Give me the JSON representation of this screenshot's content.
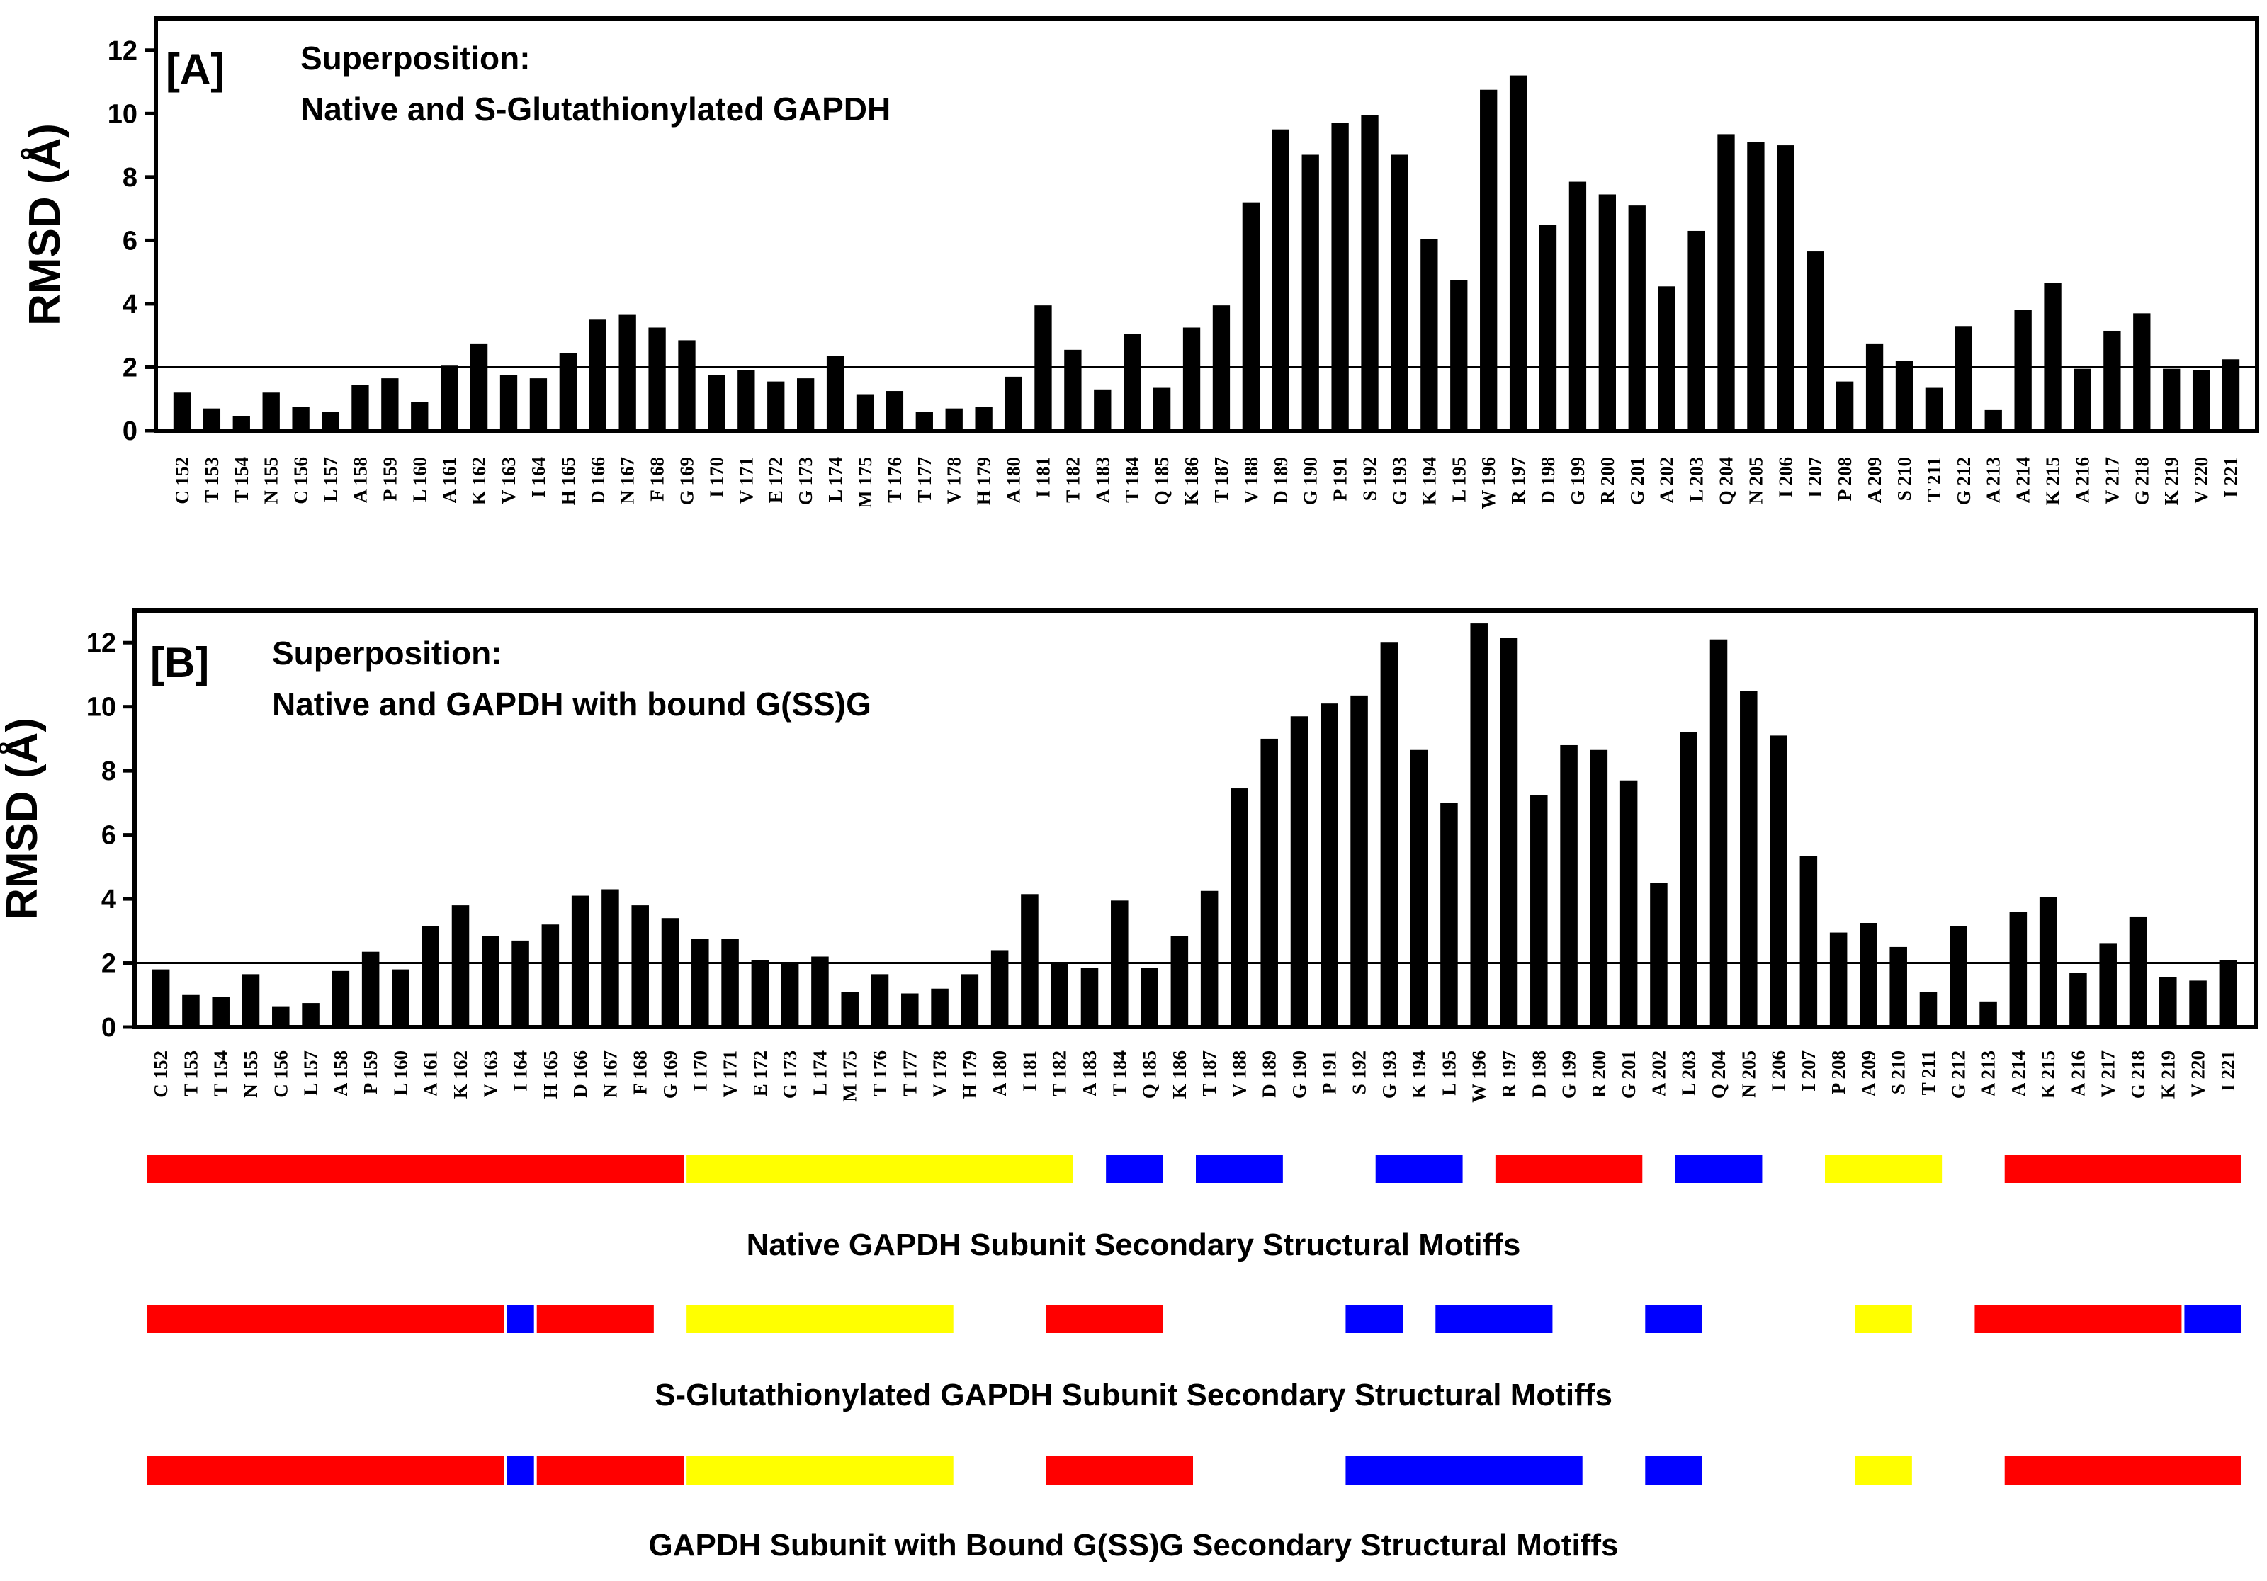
{
  "chart_data": [
    {
      "type": "bar",
      "panel": "[A]",
      "title_lines": [
        "Superposition:",
        "Native and S-Glutathionylated GAPDH"
      ],
      "ylabel": "RMSD (Å)",
      "ylim": [
        0,
        13
      ],
      "yticks": [
        0,
        2,
        4,
        6,
        8,
        10,
        12
      ],
      "reference_line": 2,
      "categories": [
        "C 152",
        "T 153",
        "T 154",
        "N 155",
        "C 156",
        "L 157",
        "A 158",
        "P 159",
        "L 160",
        "A 161",
        "K 162",
        "V 163",
        "I 164",
        "H 165",
        "D 166",
        "N 167",
        "F 168",
        "G 169",
        "I 170",
        "V 171",
        "E 172",
        "G 173",
        "L 174",
        "M 175",
        "T 176",
        "T 177",
        "V 178",
        "H 179",
        "A 180",
        "I 181",
        "T 182",
        "A 183",
        "T 184",
        "Q 185",
        "K 186",
        "T 187",
        "V 188",
        "D 189",
        "G 190",
        "P 191",
        "S 192",
        "G 193",
        "K 194",
        "L 195",
        "W 196",
        "R 197",
        "D 198",
        "G 199",
        "R 200",
        "G 201",
        "A 202",
        "L 203",
        "Q 204",
        "N 205",
        "I 206",
        "I 207",
        "P 208",
        "A 209",
        "S 210",
        "T 211",
        "G 212",
        "A 213",
        "A 214",
        "K 215",
        "A 216",
        "V 217",
        "G 218",
        "K 219",
        "V 220",
        "I 221"
      ],
      "values": [
        1.2,
        0.7,
        0.45,
        1.2,
        0.75,
        0.6,
        1.45,
        1.65,
        0.9,
        2.05,
        2.75,
        1.75,
        1.65,
        2.45,
        3.5,
        3.65,
        3.25,
        2.85,
        1.75,
        1.9,
        1.55,
        1.65,
        2.35,
        1.15,
        1.25,
        0.6,
        0.7,
        0.75,
        1.7,
        3.95,
        2.55,
        1.3,
        3.05,
        1.35,
        3.25,
        3.95,
        7.2,
        9.5,
        8.7,
        9.7,
        9.95,
        8.7,
        6.05,
        4.75,
        10.75,
        11.2,
        6.5,
        7.85,
        7.45,
        7.1,
        4.55,
        6.3,
        9.35,
        9.1,
        9.0,
        5.65,
        1.55,
        2.75,
        2.2,
        1.35,
        3.3,
        0.65,
        3.8,
        4.65,
        1.95,
        3.15,
        3.7,
        1.95,
        1.9,
        2.25
      ]
    },
    {
      "type": "bar",
      "panel": "[B]",
      "title_lines": [
        "Superposition:",
        "Native and GAPDH with bound G(SS)G"
      ],
      "ylabel": "RMSD (Å)",
      "ylim": [
        0,
        13
      ],
      "yticks": [
        0,
        2,
        4,
        6,
        8,
        10,
        12
      ],
      "reference_line": 2,
      "categories": [
        "C 152",
        "T 153",
        "T 154",
        "N 155",
        "C 156",
        "L 157",
        "A 158",
        "P 159",
        "L 160",
        "A 161",
        "K 162",
        "V 163",
        "I 164",
        "H 165",
        "D 166",
        "N 167",
        "F 168",
        "G 169",
        "I 170",
        "V 171",
        "E 172",
        "G 173",
        "L 174",
        "M 175",
        "T 176",
        "T 177",
        "V 178",
        "H 179",
        "A 180",
        "I 181",
        "T 182",
        "A 183",
        "T 184",
        "Q 185",
        "K 186",
        "T 187",
        "V 188",
        "D 189",
        "G 190",
        "P 191",
        "S 192",
        "G 193",
        "K 194",
        "L 195",
        "W 196",
        "R 197",
        "D 198",
        "G 199",
        "R 200",
        "G 201",
        "A 202",
        "L 203",
        "Q 204",
        "N 205",
        "I 206",
        "I 207",
        "P 208",
        "A 209",
        "S 210",
        "T 211",
        "G 212",
        "A 213",
        "A 214",
        "K 215",
        "A 216",
        "V 217",
        "G 218",
        "K 219",
        "V 220",
        "I 221"
      ],
      "values": [
        1.8,
        1.0,
        0.95,
        1.65,
        0.65,
        0.75,
        1.75,
        2.35,
        1.8,
        3.15,
        3.8,
        2.85,
        2.7,
        3.2,
        4.1,
        4.3,
        3.8,
        3.4,
        2.75,
        2.75,
        2.1,
        2.0,
        2.2,
        1.1,
        1.65,
        1.05,
        1.2,
        1.65,
        2.4,
        4.15,
        2.0,
        1.85,
        3.95,
        1.85,
        2.85,
        4.25,
        7.45,
        9.0,
        9.7,
        10.1,
        10.35,
        12.0,
        8.65,
        7.0,
        12.6,
        12.15,
        7.25,
        8.8,
        8.65,
        7.7,
        4.5,
        9.2,
        12.1,
        10.5,
        9.1,
        5.35,
        2.95,
        3.25,
        2.5,
        1.1,
        3.15,
        0.8,
        3.6,
        4.05,
        1.7,
        2.6,
        3.45,
        1.55,
        1.45,
        2.1
      ]
    }
  ],
  "motif_colors": {
    "red": "#ff0000",
    "yellow": "#ffff00",
    "blue": "#0000ff"
  },
  "motif_tracks": [
    {
      "caption": "Native GAPDH Subunit Secondary Structural Motiffs",
      "segments": [
        {
          "color": "red",
          "from": "C 152",
          "to": "G 169"
        },
        {
          "color": "yellow",
          "from": "I 170",
          "to": "T 182"
        },
        {
          "color": "blue",
          "from": "T 184",
          "to": "Q 185"
        },
        {
          "color": "blue",
          "from": "T 187",
          "to": "D 189"
        },
        {
          "color": "blue",
          "from": "G 193",
          "to": "L 195"
        },
        {
          "color": "red",
          "from": "R 197",
          "to": "G 201"
        },
        {
          "color": "blue",
          "from": "L 203",
          "to": "N 205"
        },
        {
          "color": "yellow",
          "from": "P 208",
          "to": "T 211"
        },
        {
          "color": "red",
          "from": "A 214",
          "to": "I 221"
        }
      ]
    },
    {
      "caption": "S-Glutathionylated GAPDH Subunit Secondary Structural Motiffs",
      "segments": [
        {
          "color": "red",
          "from": "C 152",
          "to": "V 163"
        },
        {
          "color": "blue",
          "from": "I 164",
          "to": "I 164"
        },
        {
          "color": "red",
          "from": "H 165",
          "to": "F 168"
        },
        {
          "color": "yellow",
          "from": "I 170",
          "to": "V 178"
        },
        {
          "color": "red",
          "from": "T 182",
          "to": "Q 185"
        },
        {
          "color": "blue",
          "from": "S 192",
          "to": "G 193"
        },
        {
          "color": "blue",
          "from": "L 195",
          "to": "D 198"
        },
        {
          "color": "blue",
          "from": "A 202",
          "to": "L 203"
        },
        {
          "color": "yellow",
          "from": "A 209",
          "to": "S 210"
        },
        {
          "color": "red",
          "from": "A 213",
          "to": "K 219"
        },
        {
          "color": "blue",
          "from": "V 220",
          "to": "I 221"
        }
      ]
    },
    {
      "caption": "GAPDH Subunit with Bound G(SS)G Secondary Structural Motiffs",
      "segments": [
        {
          "color": "red",
          "from": "C 152",
          "to": "V 163"
        },
        {
          "color": "blue",
          "from": "I 164",
          "to": "I 164"
        },
        {
          "color": "red",
          "from": "H 165",
          "to": "G 169"
        },
        {
          "color": "yellow",
          "from": "I 170",
          "to": "V 178"
        },
        {
          "color": "red",
          "from": "T 182",
          "to": "K 186"
        },
        {
          "color": "blue",
          "from": "S 192",
          "to": "G 199"
        },
        {
          "color": "blue",
          "from": "A 202",
          "to": "L 203"
        },
        {
          "color": "yellow",
          "from": "A 209",
          "to": "S 210"
        },
        {
          "color": "red",
          "from": "A 214",
          "to": "I 221"
        }
      ]
    }
  ]
}
